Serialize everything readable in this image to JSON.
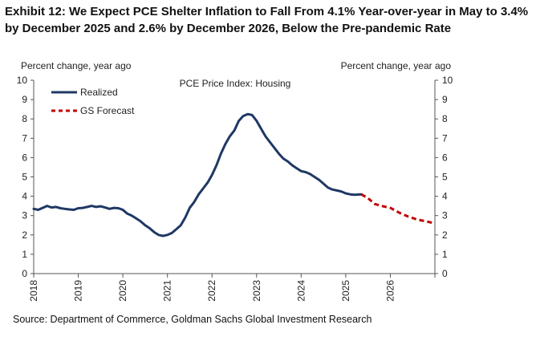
{
  "title": "Exhibit 12: We Expect PCE Shelter Inflation to Fall From 4.1% Year-over-year in May to 3.4% by December 2025 and 2.6% by December 2026, Below the Pre-pandemic Rate",
  "source": "Source: Department of Commerce, Goldman Sachs Global Investment Research",
  "chart_data": {
    "type": "line",
    "title": "PCE Price Index: Housing",
    "ylabel_left": "Percent change, year ago",
    "ylabel_right": "Percent change, year ago",
    "ylim": [
      0,
      10
    ],
    "yticks": [
      "0",
      "1",
      "2",
      "3",
      "4",
      "5",
      "6",
      "7",
      "8",
      "9",
      "10"
    ],
    "xlim": [
      2018.0,
      2027.0
    ],
    "xticks": [
      "2018",
      "2019",
      "2020",
      "2021",
      "2022",
      "2023",
      "2024",
      "2025",
      "2026"
    ],
    "grid": false,
    "legend_position": "top-left",
    "series": [
      {
        "name": "Realized",
        "color": "#1f3864",
        "style": "solid",
        "x": [
          2018.0,
          2018.1,
          2018.2,
          2018.3,
          2018.4,
          2018.5,
          2018.6,
          2018.7,
          2018.8,
          2018.9,
          2019.0,
          2019.1,
          2019.2,
          2019.3,
          2019.4,
          2019.5,
          2019.6,
          2019.7,
          2019.8,
          2019.9,
          2020.0,
          2020.1,
          2020.2,
          2020.3,
          2020.4,
          2020.5,
          2020.6,
          2020.7,
          2020.8,
          2020.9,
          2021.0,
          2021.1,
          2021.2,
          2021.3,
          2021.4,
          2021.5,
          2021.6,
          2021.7,
          2021.8,
          2021.9,
          2022.0,
          2022.1,
          2022.2,
          2022.3,
          2022.4,
          2022.5,
          2022.6,
          2022.7,
          2022.8,
          2022.9,
          2023.0,
          2023.1,
          2023.2,
          2023.3,
          2023.4,
          2023.5,
          2023.6,
          2023.7,
          2023.8,
          2023.9,
          2024.0,
          2024.1,
          2024.2,
          2024.3,
          2024.4,
          2024.5,
          2024.6,
          2024.7,
          2024.8,
          2024.9,
          2025.0,
          2025.1,
          2025.2,
          2025.35
        ],
        "y": [
          3.35,
          3.3,
          3.4,
          3.5,
          3.42,
          3.45,
          3.38,
          3.35,
          3.32,
          3.3,
          3.38,
          3.4,
          3.45,
          3.5,
          3.45,
          3.48,
          3.42,
          3.35,
          3.4,
          3.38,
          3.3,
          3.1,
          3.0,
          2.85,
          2.7,
          2.5,
          2.35,
          2.15,
          2.0,
          1.95,
          2.0,
          2.1,
          2.3,
          2.5,
          2.9,
          3.4,
          3.7,
          4.1,
          4.4,
          4.7,
          5.1,
          5.6,
          6.2,
          6.7,
          7.1,
          7.4,
          7.9,
          8.15,
          8.25,
          8.2,
          7.9,
          7.5,
          7.1,
          6.8,
          6.5,
          6.2,
          5.95,
          5.8,
          5.6,
          5.45,
          5.3,
          5.25,
          5.15,
          5.0,
          4.85,
          4.65,
          4.45,
          4.35,
          4.3,
          4.25,
          4.15,
          4.1,
          4.08,
          4.1
        ]
      },
      {
        "name": "GS Forecast",
        "color": "#c00000",
        "style": "dashed",
        "x": [
          2025.35,
          2025.5,
          2025.65,
          2025.8,
          2026.0,
          2026.2,
          2026.4,
          2026.6,
          2026.8,
          2027.0
        ],
        "y": [
          4.1,
          3.9,
          3.6,
          3.5,
          3.4,
          3.15,
          2.95,
          2.8,
          2.7,
          2.6
        ]
      }
    ]
  }
}
